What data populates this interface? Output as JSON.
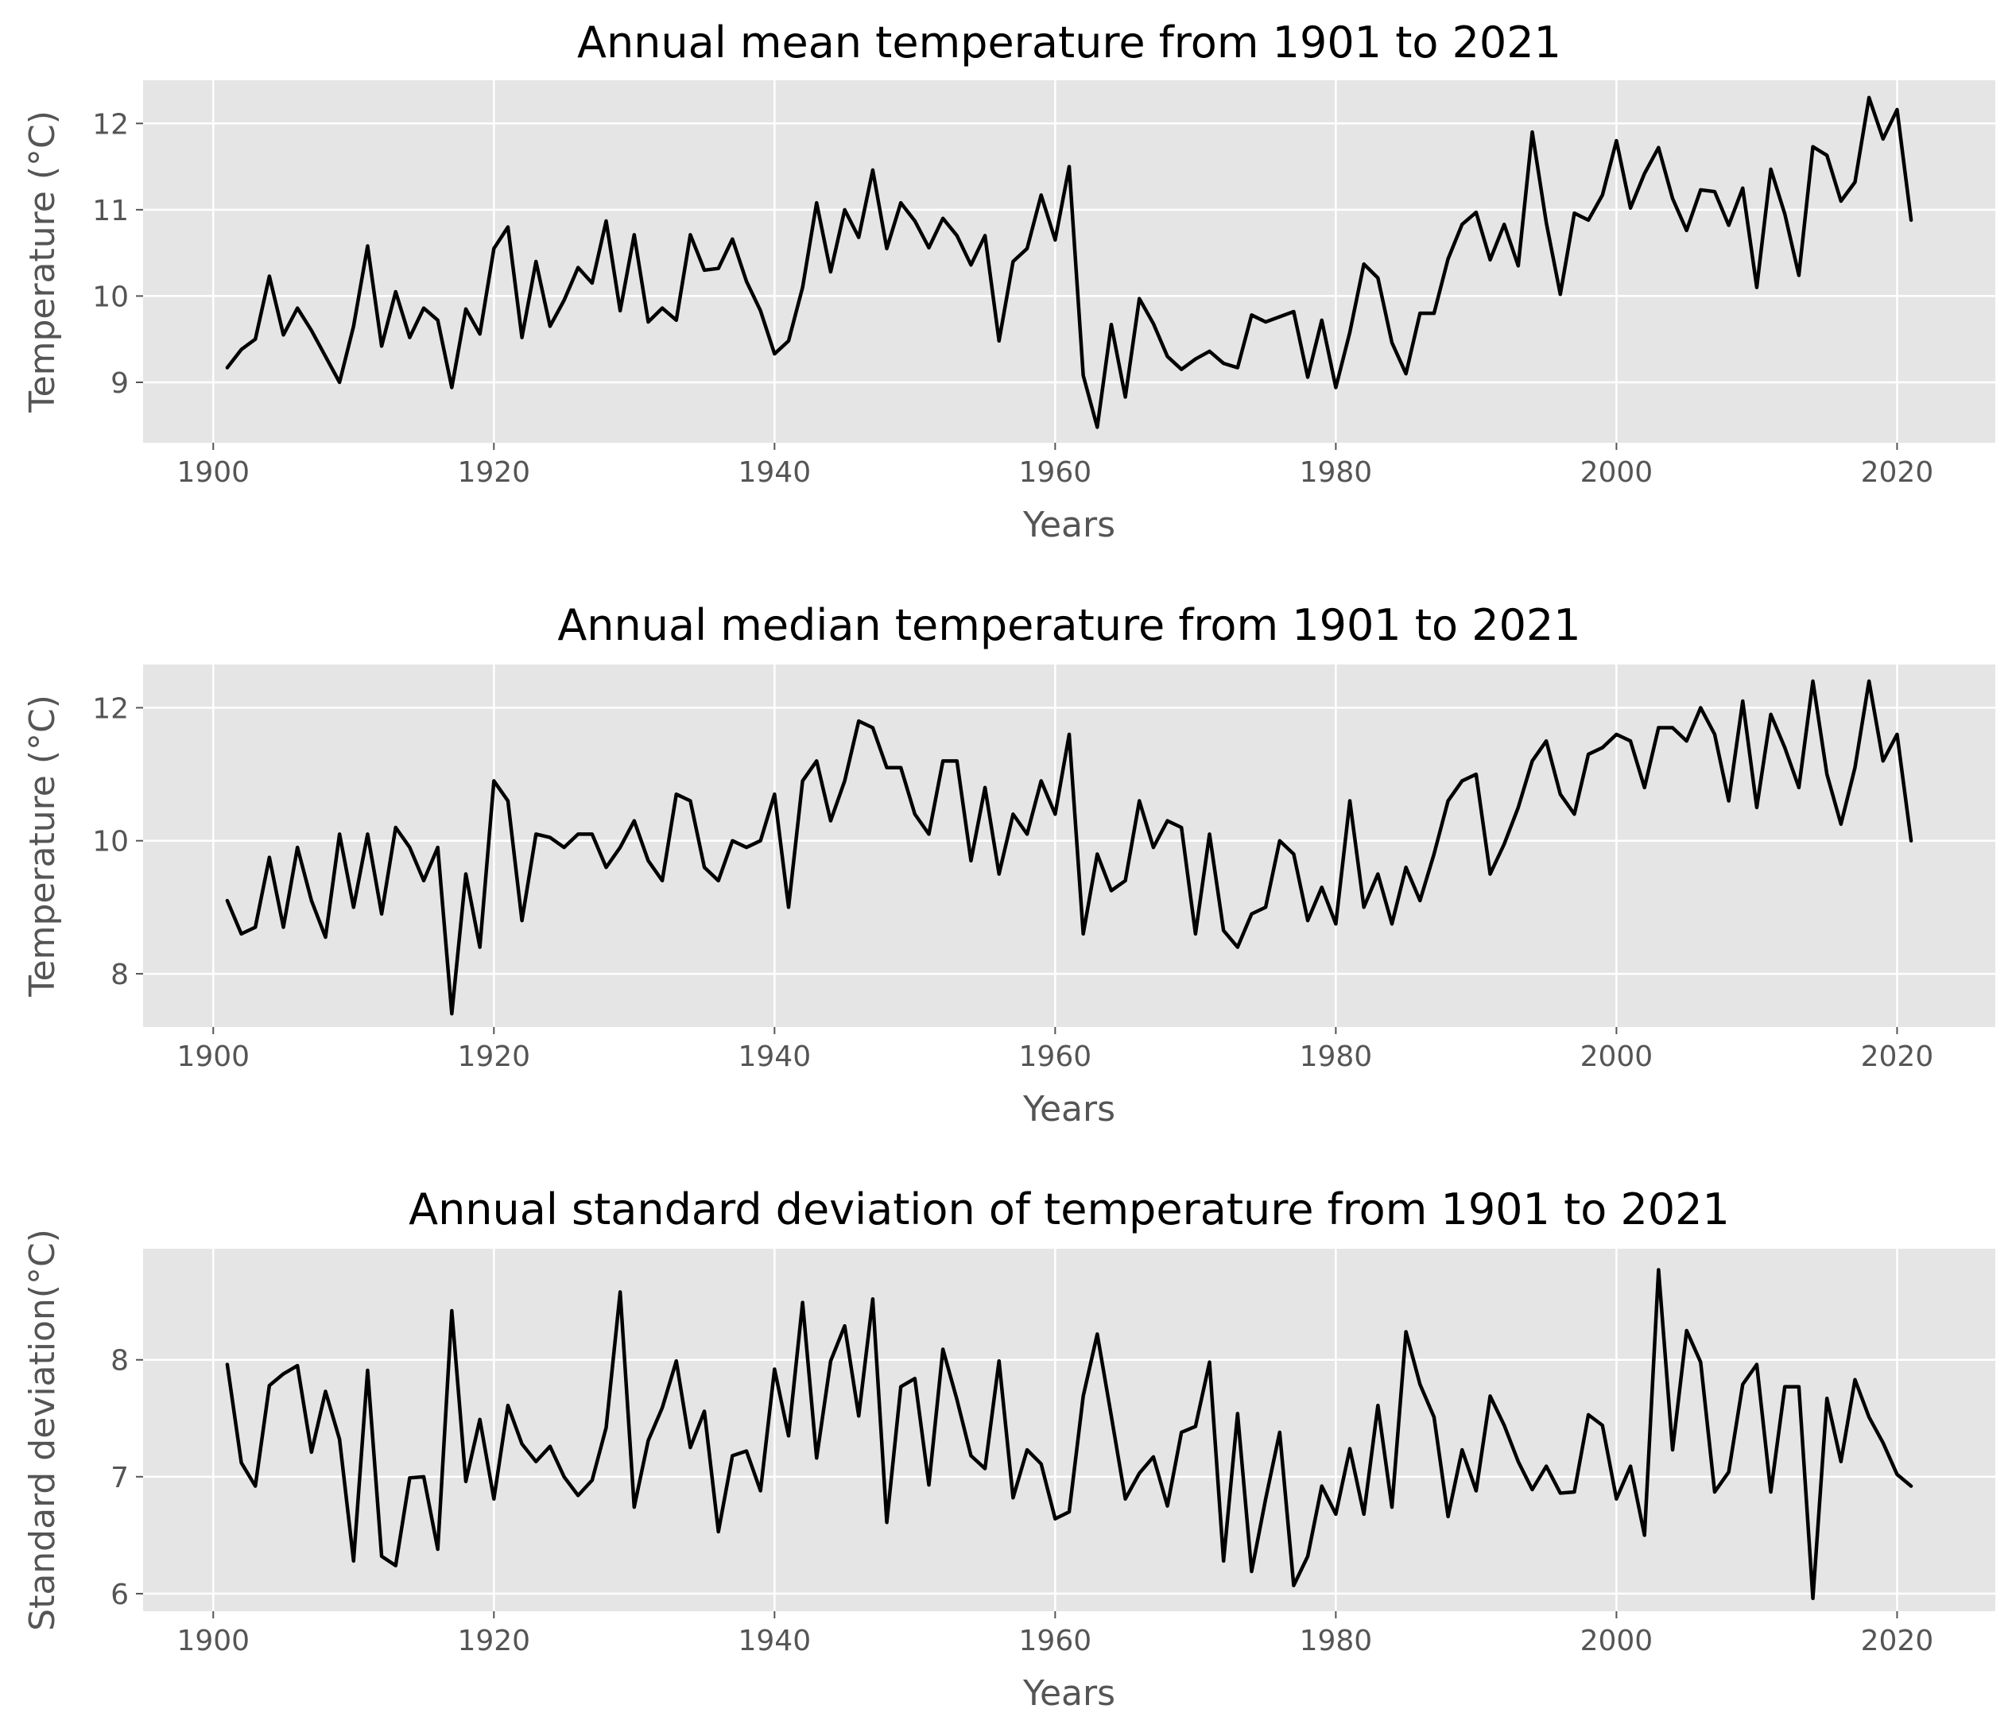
{
  "chart_data": [
    {
      "type": "line",
      "title": "Annual mean temperature from 1901 to 2021",
      "xlabel": "Years",
      "ylabel": "Temperature (°C)",
      "xlim": [
        1895,
        2027
      ],
      "ylim": [
        8.3,
        12.5
      ],
      "xticks": [
        1900,
        1920,
        1940,
        1960,
        1980,
        2000,
        2020
      ],
      "yticks": [
        9,
        10,
        11,
        12
      ],
      "grid": true,
      "color": "#000000",
      "x_start": 1901,
      "series": [
        {
          "values": [
            9.17,
            9.38,
            9.5,
            10.23,
            9.55,
            9.86,
            9.6,
            9.3,
            9.0,
            9.65,
            10.58,
            9.42,
            10.05,
            9.52,
            9.86,
            9.72,
            8.94,
            9.85,
            9.56,
            10.55,
            10.8,
            9.52,
            10.4,
            9.65,
            9.95,
            10.33,
            10.15,
            10.87,
            9.83,
            10.71,
            9.7,
            9.86,
            9.72,
            10.71,
            10.3,
            10.32,
            10.66,
            10.17,
            9.83,
            9.33,
            9.48,
            10.1,
            11.08,
            10.28,
            11.0,
            10.68,
            11.46,
            10.55,
            11.08,
            10.87,
            10.56,
            10.9,
            10.7,
            10.36,
            10.7,
            9.48,
            10.4,
            10.55,
            11.17,
            10.65,
            11.5,
            9.08,
            8.48,
            9.67,
            8.83,
            9.97,
            9.68,
            9.3,
            9.15,
            9.27,
            9.36,
            9.22,
            9.17,
            9.78,
            9.7,
            9.76,
            9.82,
            9.06,
            9.72,
            8.94,
            9.58,
            10.37,
            10.21,
            9.46,
            9.1,
            9.8,
            9.8,
            10.43,
            10.83,
            10.97,
            10.42,
            10.83,
            10.35,
            11.9,
            10.85,
            10.02,
            10.96,
            10.88,
            11.17,
            11.8,
            11.02,
            11.42,
            11.72,
            11.13,
            10.76,
            11.23,
            11.21,
            10.82,
            11.25,
            10.1,
            11.47,
            10.95,
            10.24,
            11.73,
            11.63,
            11.1,
            11.32,
            12.3,
            11.82,
            12.16,
            10.88
          ]
        }
      ]
    },
    {
      "type": "line",
      "title": "Annual median temperature from 1901 to 2021",
      "xlabel": "Years",
      "ylabel": "Temperature (°C)",
      "xlim": [
        1895,
        2027
      ],
      "ylim": [
        7.2,
        12.65
      ],
      "xticks": [
        1900,
        1920,
        1940,
        1960,
        1980,
        2000,
        2020
      ],
      "yticks": [
        8,
        10,
        12
      ],
      "grid": true,
      "color": "#000000",
      "x_start": 1901,
      "series": [
        {
          "values": [
            9.1,
            8.6,
            8.7,
            9.75,
            8.7,
            9.9,
            9.1,
            8.55,
            10.1,
            9.0,
            10.1,
            8.9,
            10.2,
            9.9,
            9.4,
            9.9,
            7.4,
            9.5,
            8.4,
            10.9,
            10.6,
            8.8,
            10.1,
            10.05,
            9.9,
            10.1,
            10.1,
            9.6,
            9.9,
            10.3,
            9.7,
            9.4,
            10.7,
            10.6,
            9.6,
            9.4,
            10.0,
            9.9,
            10.0,
            10.7,
            9.0,
            10.9,
            11.2,
            10.3,
            10.9,
            11.8,
            11.7,
            11.1,
            11.1,
            10.4,
            10.1,
            11.2,
            11.2,
            9.7,
            10.8,
            9.5,
            10.4,
            10.1,
            10.9,
            10.4,
            11.6,
            8.6,
            9.8,
            9.25,
            9.4,
            10.6,
            9.9,
            10.3,
            10.2,
            8.6,
            10.1,
            8.65,
            8.4,
            8.9,
            9.0,
            10.0,
            9.8,
            8.8,
            9.3,
            8.75,
            10.6,
            9.0,
            9.5,
            8.75,
            9.6,
            9.1,
            9.8,
            10.6,
            10.9,
            11.0,
            9.5,
            9.95,
            10.5,
            11.2,
            11.5,
            10.7,
            10.4,
            11.3,
            11.4,
            11.6,
            11.5,
            10.8,
            11.7,
            11.7,
            11.5,
            12.0,
            11.6,
            10.6,
            12.1,
            10.5,
            11.9,
            11.4,
            10.8,
            12.4,
            11.0,
            10.25,
            11.1,
            12.4,
            11.2,
            11.6,
            10.0
          ]
        }
      ]
    },
    {
      "type": "line",
      "title": "Annual standard deviation of temperature from 1901 to 2021",
      "xlabel": "Years",
      "ylabel": "Standard deviation(°C)",
      "xlim": [
        1895,
        2027
      ],
      "ylim": [
        5.85,
        8.95
      ],
      "xticks": [
        1900,
        1920,
        1940,
        1960,
        1980,
        2000,
        2020
      ],
      "yticks": [
        6,
        7,
        8
      ],
      "grid": true,
      "color": "#000000",
      "x_start": 1901,
      "series": [
        {
          "values": [
            7.96,
            7.12,
            6.92,
            7.78,
            7.88,
            7.95,
            7.21,
            7.73,
            7.32,
            6.28,
            7.91,
            6.32,
            6.24,
            6.99,
            7.0,
            6.38,
            8.42,
            6.96,
            7.49,
            6.81,
            7.61,
            7.28,
            7.13,
            7.26,
            7.0,
            6.84,
            6.97,
            7.42,
            8.58,
            6.74,
            7.31,
            7.59,
            7.99,
            7.25,
            7.56,
            6.53,
            7.18,
            7.22,
            6.88,
            7.92,
            7.35,
            8.49,
            7.16,
            7.99,
            8.29,
            7.52,
            8.52,
            6.61,
            7.77,
            7.84,
            6.93,
            8.09,
            7.66,
            7.18,
            7.07,
            7.99,
            6.82,
            7.23,
            7.11,
            6.64,
            6.7,
            7.69,
            8.22,
            7.52,
            6.81,
            7.03,
            7.17,
            6.75,
            7.38,
            7.43,
            7.98,
            6.28,
            7.54,
            6.19,
            6.81,
            7.38,
            6.07,
            6.32,
            6.92,
            6.68,
            7.24,
            6.68,
            7.61,
            6.74,
            8.24,
            7.79,
            7.51,
            6.66,
            7.23,
            6.88,
            7.69,
            7.44,
            7.13,
            6.89,
            7.09,
            6.86,
            6.87,
            7.53,
            7.44,
            6.81,
            7.09,
            6.5,
            8.77,
            7.23,
            8.25,
            7.98,
            6.87,
            7.04,
            7.79,
            7.96,
            6.87,
            7.77,
            7.77,
            5.96,
            7.67,
            7.13,
            7.83,
            7.51,
            7.29,
            7.02,
            6.92
          ]
        }
      ]
    }
  ]
}
